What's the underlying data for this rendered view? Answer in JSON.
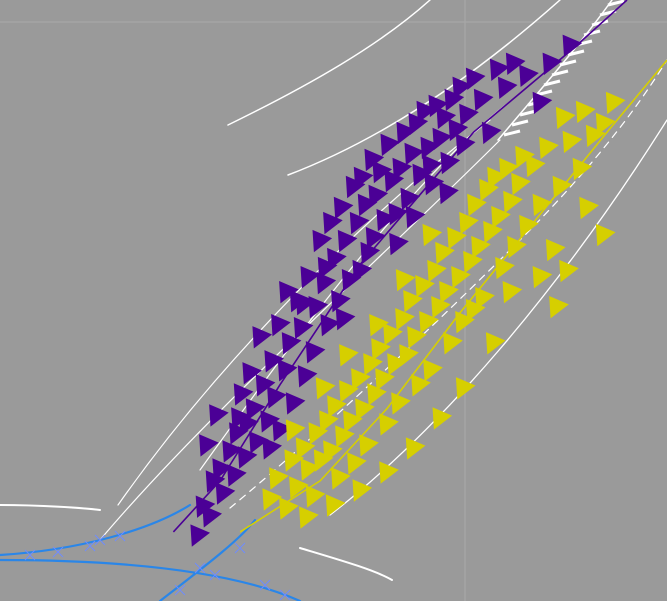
{
  "chart_data": {
    "type": "scatter",
    "title": "",
    "xlabel": "",
    "ylabel": "",
    "xlim": [
      0,
      10
    ],
    "ylim": [
      0,
      10
    ],
    "grid": true,
    "legend": "none",
    "background": "#9a9a9a",
    "marker": "triangle-right",
    "series": [
      {
        "color": "#4b0096",
        "fit_line": [
          [
            2.6,
            1.15
          ],
          [
            3.3,
            2.0
          ],
          [
            4.2,
            3.6
          ],
          [
            5.4,
            5.6
          ],
          [
            7.1,
            7.8
          ],
          [
            8.6,
            9.2
          ],
          [
            9.4,
            10.0
          ]
        ],
        "points": [
          [
            2.97,
            1.1
          ],
          [
            3.05,
            1.58
          ],
          [
            3.2,
            2.0
          ],
          [
            3.15,
            1.42
          ],
          [
            3.3,
            2.2
          ],
          [
            3.35,
            1.8
          ],
          [
            3.45,
            2.5
          ],
          [
            3.52,
            2.1
          ],
          [
            3.55,
            2.8
          ],
          [
            3.62,
            3.45
          ],
          [
            3.7,
            2.95
          ],
          [
            3.68,
            2.4
          ],
          [
            3.8,
            3.2
          ],
          [
            3.85,
            2.65
          ],
          [
            3.9,
            4.4
          ],
          [
            3.95,
            3.6
          ],
          [
            4.02,
            3.0
          ],
          [
            4.08,
            4.0
          ],
          [
            4.12,
            3.4
          ],
          [
            4.2,
            2.85
          ],
          [
            4.18,
            4.6
          ],
          [
            4.28,
            3.85
          ],
          [
            4.34,
            4.3
          ],
          [
            4.4,
            3.3
          ],
          [
            4.46,
            5.0
          ],
          [
            4.52,
            4.55
          ],
          [
            4.58,
            3.75
          ],
          [
            4.62,
            5.4
          ],
          [
            4.7,
            4.15
          ],
          [
            4.74,
            4.9
          ],
          [
            4.8,
            6.0
          ],
          [
            4.86,
            5.3
          ],
          [
            4.92,
            4.6
          ],
          [
            4.96,
            6.3
          ],
          [
            5.02,
            5.7
          ],
          [
            5.08,
            5.0
          ],
          [
            5.12,
            6.55
          ],
          [
            5.18,
            6.0
          ],
          [
            5.24,
            5.35
          ],
          [
            5.3,
            6.9
          ],
          [
            5.36,
            6.3
          ],
          [
            5.42,
            7.05
          ],
          [
            5.48,
            6.6
          ],
          [
            5.52,
            5.8
          ],
          [
            5.58,
            7.35
          ],
          [
            5.64,
            6.75
          ],
          [
            5.7,
            7.15
          ],
          [
            5.76,
            6.35
          ],
          [
            5.82,
            7.6
          ],
          [
            5.88,
            7.0
          ],
          [
            5.94,
            6.45
          ],
          [
            6.0,
            7.2
          ],
          [
            6.06,
            7.8
          ],
          [
            6.12,
            6.7
          ],
          [
            6.18,
            7.45
          ],
          [
            6.24,
            7.95
          ],
          [
            6.3,
            7.1
          ],
          [
            6.36,
            8.15
          ],
          [
            6.42,
            7.55
          ],
          [
            6.48,
            6.95
          ],
          [
            6.54,
            8.25
          ],
          [
            6.6,
            7.7
          ],
          [
            6.66,
            8.05
          ],
          [
            6.72,
            7.3
          ],
          [
            6.78,
            8.35
          ],
          [
            6.84,
            7.85
          ],
          [
            6.9,
            8.55
          ],
          [
            7.0,
            8.1
          ],
          [
            7.1,
            8.7
          ],
          [
            7.22,
            8.35
          ],
          [
            7.34,
            7.8
          ],
          [
            7.46,
            8.85
          ],
          [
            7.58,
            8.55
          ],
          [
            7.7,
            8.95
          ],
          [
            7.9,
            8.75
          ],
          [
            8.1,
            8.3
          ],
          [
            8.25,
            8.95
          ],
          [
            8.55,
            9.25
          ],
          [
            3.1,
            2.6
          ],
          [
            3.25,
            3.1
          ],
          [
            3.58,
            3.05
          ],
          [
            3.75,
            3.8
          ],
          [
            4.05,
            2.55
          ],
          [
            4.3,
            5.15
          ],
          [
            4.55,
            4.95
          ],
          [
            4.88,
            5.55
          ],
          [
            5.15,
            4.7
          ],
          [
            5.4,
            5.5
          ],
          [
            5.6,
            6.05
          ],
          [
            5.95,
            5.95
          ],
          [
            6.2,
            6.4
          ],
          [
            6.45,
            7.25
          ],
          [
            6.7,
            6.8
          ],
          [
            6.95,
            7.6
          ]
        ]
      },
      {
        "color": "#d6cf00",
        "fit_line": [
          [
            3.6,
            1.15
          ],
          [
            4.8,
            2.0
          ],
          [
            5.8,
            3.2
          ],
          [
            6.9,
            4.8
          ],
          [
            8.0,
            6.3
          ],
          [
            9.1,
            7.8
          ],
          [
            10.0,
            9.0
          ]
        ],
        "points": [
          [
            4.05,
            1.7
          ],
          [
            4.15,
            2.05
          ],
          [
            4.3,
            1.55
          ],
          [
            4.38,
            2.35
          ],
          [
            4.45,
            1.9
          ],
          [
            4.55,
            2.55
          ],
          [
            4.62,
            2.2
          ],
          [
            4.7,
            1.75
          ],
          [
            4.74,
            2.8
          ],
          [
            4.82,
            2.35
          ],
          [
            4.9,
            3.0
          ],
          [
            4.96,
            2.5
          ],
          [
            5.02,
            3.25
          ],
          [
            5.08,
            2.05
          ],
          [
            5.14,
            2.75
          ],
          [
            5.2,
            3.5
          ],
          [
            5.26,
            3.0
          ],
          [
            5.32,
            2.3
          ],
          [
            5.38,
            3.7
          ],
          [
            5.44,
            3.2
          ],
          [
            5.5,
            2.6
          ],
          [
            5.56,
            3.95
          ],
          [
            5.62,
            3.45
          ],
          [
            5.68,
            4.2
          ],
          [
            5.74,
            3.7
          ],
          [
            5.8,
            2.95
          ],
          [
            5.86,
            4.45
          ],
          [
            5.92,
            3.95
          ],
          [
            5.98,
            3.3
          ],
          [
            6.04,
            4.7
          ],
          [
            6.1,
            4.1
          ],
          [
            6.16,
            5.0
          ],
          [
            6.22,
            4.4
          ],
          [
            6.28,
            3.6
          ],
          [
            6.34,
            5.25
          ],
          [
            6.4,
            4.65
          ],
          [
            6.46,
            3.85
          ],
          [
            6.52,
            5.5
          ],
          [
            6.58,
            4.9
          ],
          [
            6.64,
            5.8
          ],
          [
            6.7,
            5.15
          ],
          [
            6.76,
            4.3
          ],
          [
            6.82,
            6.05
          ],
          [
            6.88,
            5.4
          ],
          [
            6.94,
            4.65
          ],
          [
            7.0,
            6.3
          ],
          [
            7.06,
            5.65
          ],
          [
            7.12,
            6.6
          ],
          [
            7.18,
            5.9
          ],
          [
            7.24,
            5.05
          ],
          [
            7.3,
            6.85
          ],
          [
            7.36,
            6.15
          ],
          [
            7.42,
            7.05
          ],
          [
            7.48,
            6.4
          ],
          [
            7.54,
            5.55
          ],
          [
            7.6,
            7.2
          ],
          [
            7.66,
            6.65
          ],
          [
            7.72,
            5.9
          ],
          [
            7.78,
            6.95
          ],
          [
            7.84,
            7.4
          ],
          [
            7.9,
            6.25
          ],
          [
            8.0,
            7.25
          ],
          [
            8.1,
            6.6
          ],
          [
            8.2,
            7.55
          ],
          [
            8.3,
            5.85
          ],
          [
            8.4,
            6.9
          ],
          [
            8.55,
            7.65
          ],
          [
            8.7,
            7.2
          ],
          [
            8.8,
            6.55
          ],
          [
            8.9,
            7.75
          ],
          [
            9.05,
            6.1
          ],
          [
            9.2,
            8.3
          ],
          [
            8.1,
            5.4
          ],
          [
            8.35,
            4.9
          ],
          [
            8.5,
            5.5
          ],
          [
            7.4,
            4.3
          ],
          [
            6.95,
            3.55
          ],
          [
            6.6,
            3.05
          ],
          [
            6.2,
            2.55
          ],
          [
            5.8,
            2.15
          ],
          [
            5.4,
            1.85
          ],
          [
            5.0,
            1.6
          ],
          [
            4.6,
            1.4
          ],
          [
            9.05,
            7.95
          ],
          [
            8.75,
            8.15
          ],
          [
            8.45,
            8.05
          ],
          [
            5.65,
            4.6
          ],
          [
            6.05,
            5.35
          ],
          [
            6.45,
            6.1
          ],
          [
            7.1,
            4.85
          ],
          [
            7.65,
            5.15
          ],
          [
            5.2,
            4.1
          ],
          [
            4.85,
            3.55
          ],
          [
            4.4,
            2.85
          ]
        ]
      }
    ]
  }
}
